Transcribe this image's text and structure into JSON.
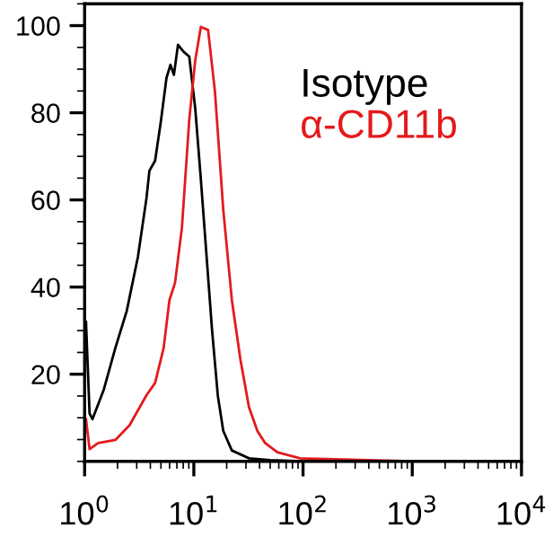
{
  "chart_data": {
    "type": "line",
    "log": "x",
    "xlim": [
      1,
      10000
    ],
    "ylim": [
      0,
      105
    ],
    "xticks": [
      {
        "value": 1,
        "label": "10$^{0}$"
      },
      {
        "value": 10,
        "label": "10$^{1}$"
      },
      {
        "value": 100,
        "label": "10$^{2}$"
      },
      {
        "value": 1000,
        "label": "10$^{3}$"
      },
      {
        "value": 10000,
        "label": "10$^{4}$"
      }
    ],
    "yticks": [
      20,
      40,
      60,
      80,
      100
    ],
    "grid": false,
    "legend": "top right",
    "marker": "none",
    "line_style": "solid",
    "series": [
      {
        "name": "Isotype",
        "color": "#000000",
        "x": [
          1.03,
          1.11,
          1.18,
          1.5,
          1.91,
          2.43,
          3.08,
          3.69,
          3.92,
          4.42,
          4.99,
          5.62,
          6.11,
          6.57,
          7.16,
          8.06,
          9.08,
          10.3,
          11.6,
          13.0,
          14.7,
          16.6,
          18.6,
          22.3,
          32,
          50,
          100,
          1000,
          10000
        ],
        "values": [
          32,
          11,
          9.7,
          16.5,
          26,
          34.5,
          47,
          60.5,
          66.7,
          69,
          78,
          88,
          91,
          88.7,
          95.6,
          94,
          92.9,
          81,
          64.7,
          48,
          30,
          15,
          7,
          2.5,
          0.7,
          0.3,
          0,
          0,
          0
        ]
      },
      {
        "name": "α-CD11b",
        "color": "#e31a1c",
        "x": [
          1.03,
          1.11,
          1.33,
          1.91,
          2.58,
          3.69,
          4.42,
          5.29,
          5.98,
          6.73,
          7.78,
          9.08,
          10.3,
          11.6,
          13.5,
          15.6,
          18.6,
          22.3,
          26.7,
          32,
          38.3,
          45,
          58.3,
          94,
          1000,
          10000
        ],
        "values": [
          9.7,
          2.8,
          4.2,
          4.9,
          8.3,
          15.2,
          18,
          26,
          37,
          41,
          53.6,
          78.4,
          92,
          99.7,
          99,
          85,
          57.8,
          37,
          23.4,
          12.4,
          6.9,
          4.2,
          2.1,
          0.7,
          0,
          0
        ]
      }
    ]
  }
}
